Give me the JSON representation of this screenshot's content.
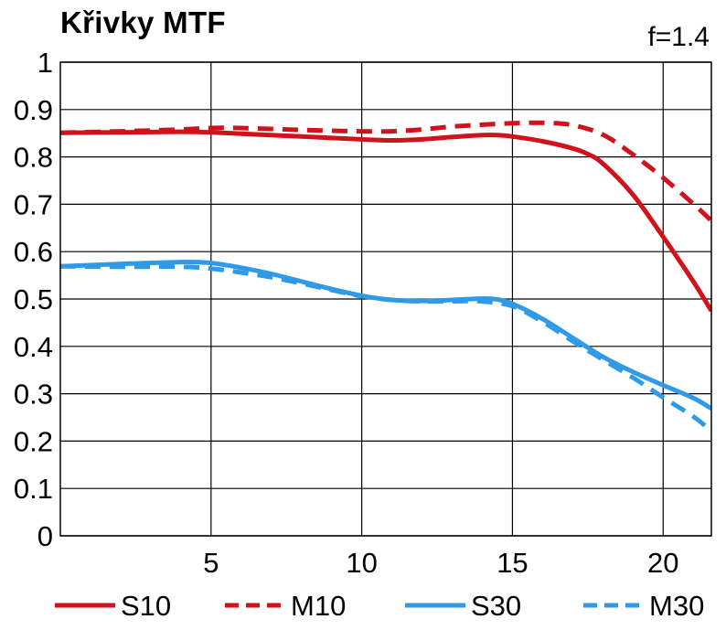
{
  "chart_data": {
    "type": "line",
    "title": "Křivky MTF",
    "annotation": "f=1.4",
    "xlabel": "",
    "ylabel": "",
    "xlim": [
      0,
      21.6
    ],
    "ylim": [
      0,
      1
    ],
    "x_ticks": [
      5,
      10,
      15,
      20
    ],
    "x_tick_labels": [
      "5",
      "10",
      "15",
      "20"
    ],
    "y_ticks": [
      0,
      0.1,
      0.2,
      0.3,
      0.4,
      0.5,
      0.6,
      0.7,
      0.8,
      0.9,
      1
    ],
    "y_tick_labels": [
      "0",
      "0.1",
      "0.2",
      "0.3",
      "0.4",
      "0.5",
      "0.6",
      "0.7",
      "0.8",
      "0.9",
      "1"
    ],
    "grid": true,
    "legend_position": "bottom",
    "series": [
      {
        "name": "S10",
        "color": "#d0121b",
        "dash": "solid",
        "x": [
          0,
          2,
          4,
          5,
          6,
          8,
          10,
          11,
          12,
          13,
          14,
          14.5,
          15,
          16,
          17,
          17.5,
          18,
          19,
          20,
          21,
          21.6
        ],
        "y": [
          0.851,
          0.852,
          0.853,
          0.852,
          0.849,
          0.843,
          0.837,
          0.835,
          0.837,
          0.842,
          0.846,
          0.846,
          0.843,
          0.833,
          0.818,
          0.806,
          0.786,
          0.72,
          0.631,
          0.537,
          0.475
        ]
      },
      {
        "name": "M10",
        "color": "#d0121b",
        "dash": "dashed",
        "x": [
          0,
          2,
          4,
          5,
          6,
          8,
          10,
          11,
          12,
          13,
          14,
          15,
          16,
          17,
          18,
          19,
          20,
          21,
          21.6
        ],
        "y": [
          0.851,
          0.854,
          0.858,
          0.861,
          0.861,
          0.857,
          0.854,
          0.854,
          0.858,
          0.864,
          0.868,
          0.871,
          0.872,
          0.867,
          0.847,
          0.805,
          0.756,
          0.701,
          0.665
        ]
      },
      {
        "name": "S30",
        "color": "#2f9be8",
        "dash": "solid",
        "x": [
          0,
          2,
          4,
          5,
          6,
          7,
          8,
          9,
          10,
          11,
          12,
          13,
          14,
          14.5,
          15,
          16,
          17,
          18,
          19,
          20,
          21,
          21.6
        ],
        "y": [
          0.569,
          0.574,
          0.578,
          0.576,
          0.566,
          0.553,
          0.537,
          0.521,
          0.507,
          0.498,
          0.496,
          0.498,
          0.501,
          0.499,
          0.49,
          0.458,
          0.418,
          0.378,
          0.346,
          0.318,
          0.291,
          0.269
        ]
      },
      {
        "name": "M30",
        "color": "#2f9be8",
        "dash": "dashed",
        "x": [
          0,
          2,
          4,
          5,
          6,
          7,
          8,
          9,
          10,
          11,
          12,
          13,
          14,
          15,
          16,
          17,
          18,
          19,
          20,
          21,
          21.6
        ],
        "y": [
          0.569,
          0.568,
          0.568,
          0.564,
          0.556,
          0.546,
          0.533,
          0.519,
          0.506,
          0.498,
          0.495,
          0.495,
          0.495,
          0.485,
          0.452,
          0.411,
          0.372,
          0.334,
          0.292,
          0.252,
          0.221
        ]
      }
    ]
  }
}
